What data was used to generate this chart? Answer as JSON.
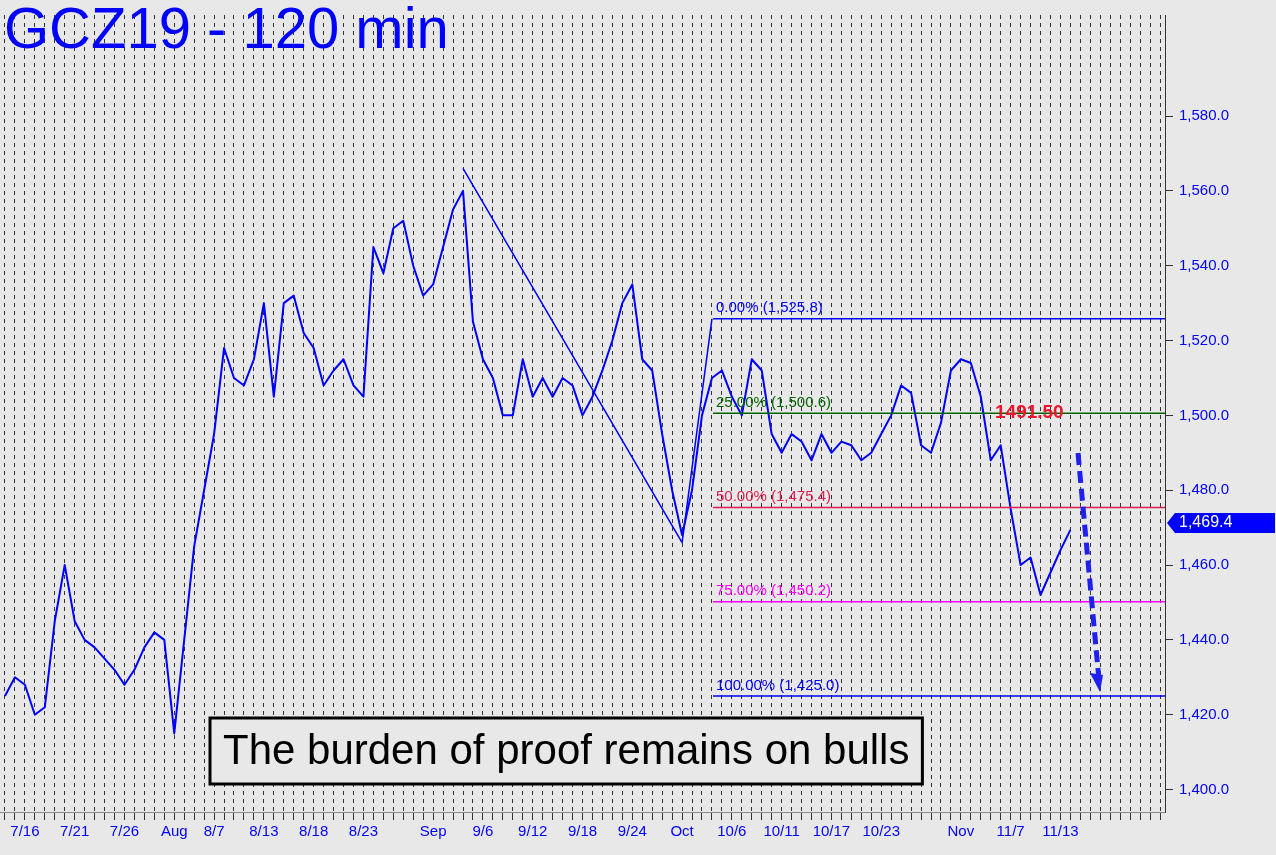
{
  "chart_data": {
    "type": "line",
    "title": "GCZ19 - 120 min",
    "categories": [
      null,
      null,
      "7/16",
      null,
      null,
      null,
      null,
      "7/21",
      null,
      null,
      null,
      null,
      "7/26",
      null,
      null,
      null,
      null,
      "Aug",
      null,
      null,
      null,
      "8/7",
      null,
      null,
      null,
      null,
      "8/13",
      null,
      null,
      null,
      null,
      "8/18",
      null,
      null,
      null,
      null,
      "8/23",
      null,
      null,
      null,
      null,
      null,
      null,
      "Sep",
      null,
      null,
      null,
      null,
      "9/6",
      null,
      null,
      null,
      null,
      "9/12",
      null,
      null,
      null,
      null,
      "9/18",
      null,
      null,
      null,
      null,
      "9/24",
      null,
      null,
      null,
      null,
      "Oct",
      null,
      null,
      null,
      null,
      "10/6",
      null,
      null,
      null,
      null,
      "10/11",
      null,
      null,
      null,
      null,
      "10/17",
      null,
      null,
      null,
      null,
      "10/23",
      null,
      null,
      null,
      null,
      null,
      null,
      null,
      "Nov",
      null,
      null,
      null,
      null,
      "11/7",
      null,
      null,
      null,
      null,
      "11/13",
      null,
      null,
      null,
      null,
      null,
      null,
      null,
      null,
      null,
      null
    ],
    "series": [
      {
        "color": "#0000ff",
        "values": [
          1425,
          1430,
          1428,
          1420,
          1422,
          1445,
          1460,
          1445,
          1440,
          1438,
          1435,
          1432,
          1428,
          1432,
          1438,
          1442,
          1440,
          1415,
          1440,
          1465,
          1480,
          1495,
          1518,
          1510,
          1508,
          1515,
          1530,
          1505,
          1530,
          1532,
          1522,
          1518,
          1508,
          1512,
          1515,
          1508,
          1505,
          1545,
          1538,
          1550,
          1552,
          1540,
          1532,
          1535,
          1545,
          1555,
          1560,
          1525,
          1515,
          1510,
          1500,
          1500,
          1515,
          1505,
          1510,
          1505,
          1510,
          1508,
          1500,
          1505,
          1512,
          1520,
          1530,
          1535,
          1515,
          1512,
          1495,
          1480,
          1468,
          1480,
          1500,
          1510,
          1512,
          1505,
          1500,
          1515,
          1512,
          1495,
          1490,
          1495,
          1493,
          1488,
          1495,
          1490,
          1493,
          1492,
          1488,
          1490,
          1495,
          1500,
          1508,
          1506,
          1492,
          1490,
          1498,
          1512,
          1515,
          1514,
          1505,
          1488,
          1492,
          1475,
          1460,
          1462,
          1452,
          1458,
          1464,
          1469.4,
          null,
          null,
          null,
          null,
          null,
          null,
          null,
          null,
          null
        ],
        "value_labels": [
          null,
          null,
          null,
          null,
          null,
          null,
          null,
          null,
          null,
          null,
          null,
          null,
          null,
          null,
          null,
          null,
          null,
          null,
          null,
          null,
          null,
          null,
          null,
          null,
          null,
          null,
          null,
          null,
          null,
          null,
          null,
          null,
          null,
          null,
          null,
          null,
          null,
          null,
          null,
          null,
          null,
          null,
          null,
          null,
          null,
          null,
          null,
          null,
          null,
          null,
          null,
          null,
          null,
          null,
          null,
          null,
          null,
          null,
          null,
          null,
          null,
          null,
          null,
          null,
          null,
          null,
          null,
          null,
          null,
          null,
          null,
          null,
          null,
          null,
          null,
          null,
          null,
          null,
          null,
          null,
          null,
          null,
          null,
          null,
          null,
          null,
          null,
          null,
          null,
          null,
          null,
          null,
          null,
          null,
          null,
          null,
          null,
          null,
          null,
          null,
          null,
          null,
          null,
          null,
          null,
          null,
          null,
          null,
          null,
          null,
          null,
          null,
          null,
          null,
          null,
          null,
          null
        ]
      },
      {
        "type": "line",
        "color": "#0000ff",
        "values": [
          null,
          null,
          null,
          null,
          null,
          null,
          null,
          null,
          null,
          null,
          null,
          null,
          null,
          null,
          null,
          null,
          null,
          null,
          null,
          null,
          null,
          null,
          null,
          null,
          null,
          null,
          null,
          null,
          null,
          null,
          null,
          null,
          null,
          null,
          null,
          null,
          null,
          null,
          null,
          null,
          null,
          null,
          null,
          null,
          null,
          null,
          1566,
          null,
          null,
          null,
          null,
          null,
          null,
          null,
          null,
          null,
          null,
          null,
          null,
          null,
          null,
          null,
          null,
          null,
          null,
          null,
          null,
          null,
          1466,
          null,
          null,
          1525.8,
          null,
          null,
          null,
          null,
          null,
          null,
          null,
          null,
          null,
          null,
          null,
          null,
          null,
          null,
          null,
          null,
          null,
          null,
          null,
          null,
          null,
          null,
          null,
          null,
          null,
          null,
          null,
          null,
          null,
          null,
          null,
          null,
          null,
          null,
          null,
          null,
          null,
          null,
          null,
          null,
          null,
          null,
          null,
          null,
          null
        ]
      }
    ],
    "ylim": [
      1394,
      1607
    ],
    "yticks": [
      {
        "value": 1400,
        "label": "1,400.0"
      },
      {
        "value": 1420,
        "label": "1,420.0"
      },
      {
        "value": 1440,
        "label": "1,440.0"
      },
      {
        "value": 1460,
        "label": "1,460.0"
      },
      {
        "value": 1480,
        "label": "1,480.0"
      },
      {
        "value": 1500,
        "label": "1,500.0"
      },
      {
        "value": 1520,
        "label": "1,520.0"
      },
      {
        "value": 1540,
        "label": "1,540.0"
      },
      {
        "value": 1560,
        "label": "1,560.0"
      },
      {
        "value": 1580,
        "label": "1,580.0"
      }
    ],
    "grid": "x",
    "marker": "none",
    "ref_lines": [
      {
        "axis": "y",
        "value": 1525.8,
        "label": "0.00% (1,525.8)",
        "color": "#0000ff"
      },
      {
        "axis": "y",
        "value": 1500.6,
        "label": "25.00% (1,500.6)",
        "color": "#006400"
      },
      {
        "axis": "y",
        "value": 1475.4,
        "label": "50.00% (1,475.4)",
        "color": "#dc1e50"
      },
      {
        "axis": "y",
        "value": 1450.2,
        "label": "75.00% (1,450.2)",
        "color": "#ff00ff"
      },
      {
        "axis": "y",
        "value": 1425.0,
        "label": "100.00% (1,425.0)",
        "color": "#0000ff"
      }
    ],
    "annotations": [
      "The burden of proof remains on bulls",
      "1491.50",
      "1,469.4"
    ]
  }
}
